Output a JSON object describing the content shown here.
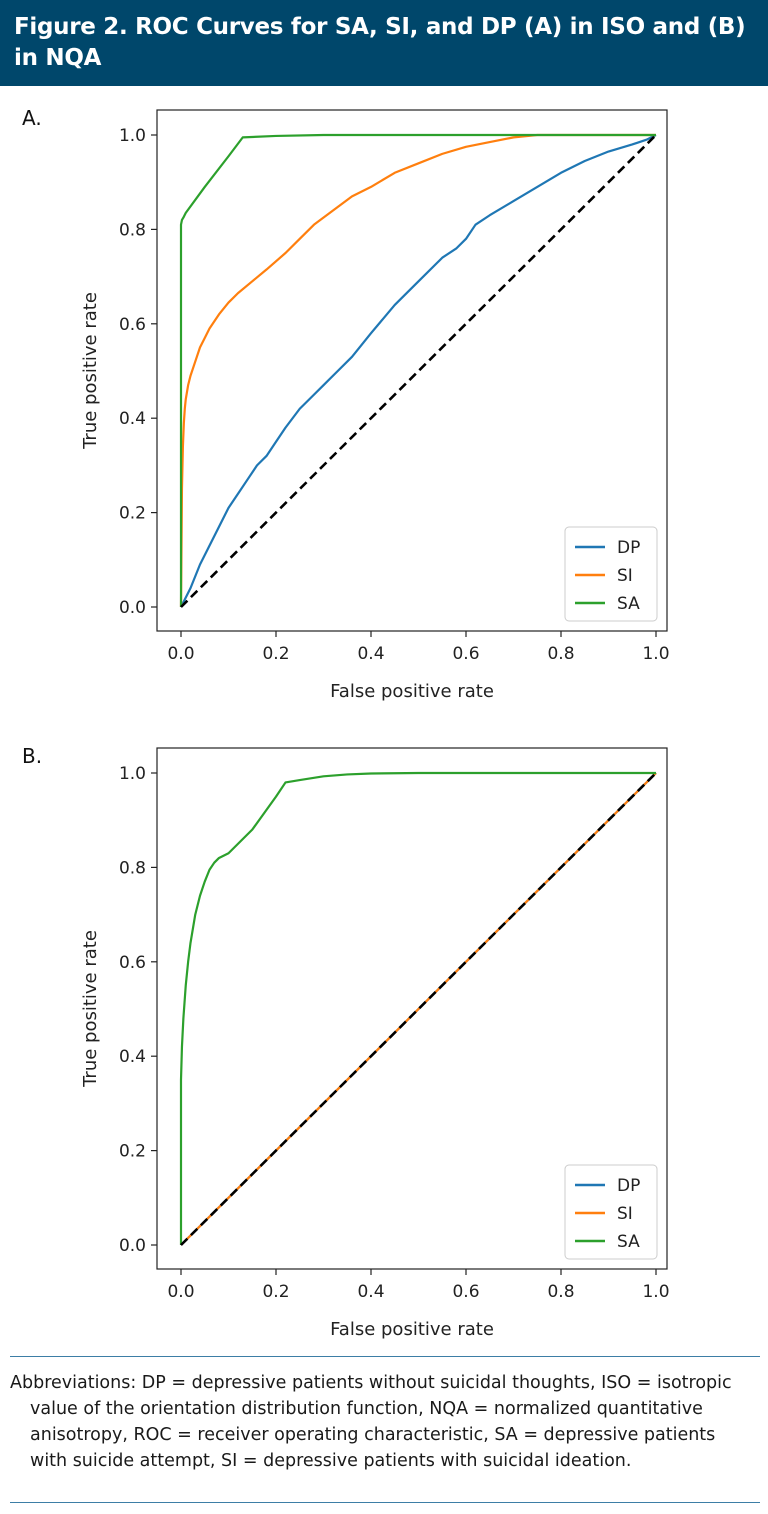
{
  "figure_title": "Figure 2. ROC Curves for SA, SI, and DP (A) in ISO and (B) in NQA",
  "colors": {
    "header_bg": "#00476b",
    "DP": "#1f77b4",
    "SI": "#ff7f0e",
    "SA": "#2ca02c",
    "chance": "#000000"
  },
  "chart_data": [
    {
      "panel_label": "A.",
      "type": "line",
      "xlabel": "False positive rate",
      "ylabel": "True positive rate",
      "xlim": [
        0,
        1
      ],
      "ylim": [
        0,
        1
      ],
      "xticks": [
        "0.0",
        "0.2",
        "0.4",
        "0.6",
        "0.8",
        "1.0"
      ],
      "yticks": [
        "0.0",
        "0.2",
        "0.4",
        "0.6",
        "0.8",
        "1.0"
      ],
      "legend_position": "bottom-right",
      "legend": [
        "DP",
        "SI",
        "SA"
      ],
      "series": [
        {
          "name": "DP",
          "x": [
            0,
            0.02,
            0.04,
            0.06,
            0.08,
            0.1,
            0.12,
            0.14,
            0.16,
            0.18,
            0.2,
            0.22,
            0.25,
            0.28,
            0.3,
            0.33,
            0.36,
            0.4,
            0.45,
            0.5,
            0.55,
            0.58,
            0.6,
            0.62,
            0.65,
            0.7,
            0.75,
            0.8,
            0.85,
            0.9,
            0.95,
            0.98,
            1.0
          ],
          "y": [
            0,
            0.04,
            0.09,
            0.13,
            0.17,
            0.21,
            0.24,
            0.27,
            0.3,
            0.32,
            0.35,
            0.38,
            0.42,
            0.45,
            0.47,
            0.5,
            0.53,
            0.58,
            0.64,
            0.69,
            0.74,
            0.76,
            0.78,
            0.81,
            0.83,
            0.86,
            0.89,
            0.92,
            0.945,
            0.965,
            0.98,
            0.99,
            1.0
          ]
        },
        {
          "name": "SI",
          "x": [
            0,
            0.002,
            0.004,
            0.006,
            0.008,
            0.01,
            0.015,
            0.02,
            0.03,
            0.04,
            0.05,
            0.06,
            0.08,
            0.1,
            0.12,
            0.15,
            0.18,
            0.22,
            0.25,
            0.28,
            0.32,
            0.36,
            0.4,
            0.45,
            0.5,
            0.55,
            0.6,
            0.65,
            0.7,
            0.75,
            0.8,
            0.9,
            1.0
          ],
          "y": [
            0,
            0.25,
            0.34,
            0.39,
            0.42,
            0.44,
            0.47,
            0.49,
            0.52,
            0.55,
            0.57,
            0.59,
            0.62,
            0.645,
            0.665,
            0.69,
            0.715,
            0.75,
            0.78,
            0.81,
            0.84,
            0.87,
            0.89,
            0.92,
            0.94,
            0.96,
            0.975,
            0.985,
            0.995,
            1.0,
            1.0,
            1.0,
            1.0
          ]
        },
        {
          "name": "SA",
          "x": [
            0,
            0,
            0.002,
            0.005,
            0.01,
            0.05,
            0.1,
            0.13,
            0.2,
            0.3,
            0.5,
            0.7,
            1.0
          ],
          "y": [
            0,
            0.81,
            0.82,
            0.825,
            0.835,
            0.89,
            0.955,
            0.995,
            0.998,
            1.0,
            1.0,
            1.0,
            1.0
          ]
        },
        {
          "name": "chance",
          "x": [
            0,
            1
          ],
          "y": [
            0,
            1
          ]
        }
      ]
    },
    {
      "panel_label": "B.",
      "type": "line",
      "xlabel": "False positive rate",
      "ylabel": "True positive rate",
      "xlim": [
        0,
        1
      ],
      "ylim": [
        0,
        1
      ],
      "xticks": [
        "0.0",
        "0.2",
        "0.4",
        "0.6",
        "0.8",
        "1.0"
      ],
      "yticks": [
        "0.0",
        "0.2",
        "0.4",
        "0.6",
        "0.8",
        "1.0"
      ],
      "legend_position": "bottom-right",
      "legend": [
        "DP",
        "SI",
        "SA"
      ],
      "series": [
        {
          "name": "DP",
          "x": [
            0,
            1
          ],
          "y": [
            0,
            1
          ]
        },
        {
          "name": "SI",
          "x": [
            0,
            1
          ],
          "y": [
            0,
            1
          ]
        },
        {
          "name": "SA",
          "x": [
            0,
            0,
            0.002,
            0.005,
            0.01,
            0.015,
            0.02,
            0.03,
            0.04,
            0.05,
            0.06,
            0.07,
            0.08,
            0.1,
            0.15,
            0.2,
            0.22,
            0.25,
            0.3,
            0.35,
            0.4,
            0.5,
            0.7,
            1.0
          ],
          "y": [
            0,
            0.35,
            0.42,
            0.48,
            0.55,
            0.6,
            0.64,
            0.7,
            0.74,
            0.77,
            0.795,
            0.81,
            0.82,
            0.83,
            0.88,
            0.95,
            0.98,
            0.985,
            0.993,
            0.997,
            0.999,
            1.0,
            1.0,
            1.0
          ]
        },
        {
          "name": "chance",
          "x": [
            0,
            1
          ],
          "y": [
            0,
            1
          ]
        }
      ]
    }
  ],
  "abbreviations": "Abbreviations: DP = depressive patients without suicidal thoughts, ISO = isotropic value of the orientation distribution function, NQA = normalized quantitative anisotropy, ROC = receiver operating characteristic, SA = depressive patients with suicide attempt, SI = depressive patients with suicidal ideation."
}
